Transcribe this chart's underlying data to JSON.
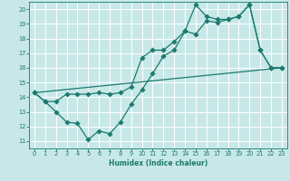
{
  "xlabel": "Humidex (Indice chaleur)",
  "bg_color": "#c8e8e8",
  "grid_color": "#e8f8f8",
  "line_color": "#1a7a6e",
  "xlim": [
    -0.5,
    23.5
  ],
  "ylim": [
    10.5,
    20.5
  ],
  "xticks": [
    0,
    1,
    2,
    3,
    4,
    5,
    6,
    7,
    8,
    9,
    10,
    11,
    12,
    13,
    14,
    15,
    16,
    17,
    18,
    19,
    20,
    21,
    22,
    23
  ],
  "yticks": [
    11,
    12,
    13,
    14,
    15,
    16,
    17,
    18,
    19,
    20
  ],
  "curve_lower_x": [
    0,
    1,
    2,
    3,
    4,
    5,
    6,
    7,
    8,
    9,
    10,
    11,
    12,
    13,
    14,
    15,
    16,
    17,
    18,
    19,
    20,
    21,
    22,
    23
  ],
  "curve_lower_y": [
    14.3,
    13.7,
    13.0,
    12.3,
    12.2,
    11.1,
    11.7,
    11.5,
    12.3,
    13.5,
    14.5,
    15.6,
    16.8,
    17.2,
    18.5,
    18.3,
    19.2,
    19.1,
    19.3,
    19.5,
    20.3,
    17.2,
    16.0,
    16.0
  ],
  "curve_upper_x": [
    0,
    1,
    2,
    3,
    4,
    5,
    6,
    7,
    8,
    9,
    10,
    11,
    12,
    13,
    14,
    15,
    16,
    17,
    18,
    19,
    20,
    21,
    22,
    23
  ],
  "curve_upper_y": [
    14.3,
    13.7,
    13.7,
    14.2,
    14.2,
    14.2,
    14.3,
    14.2,
    14.3,
    14.7,
    16.7,
    17.2,
    17.2,
    17.8,
    18.5,
    20.3,
    19.5,
    19.3,
    19.3,
    19.5,
    20.3,
    17.2,
    16.0,
    16.0
  ],
  "curve_trend_x": [
    0,
    23
  ],
  "curve_trend_y": [
    14.3,
    16.0
  ]
}
